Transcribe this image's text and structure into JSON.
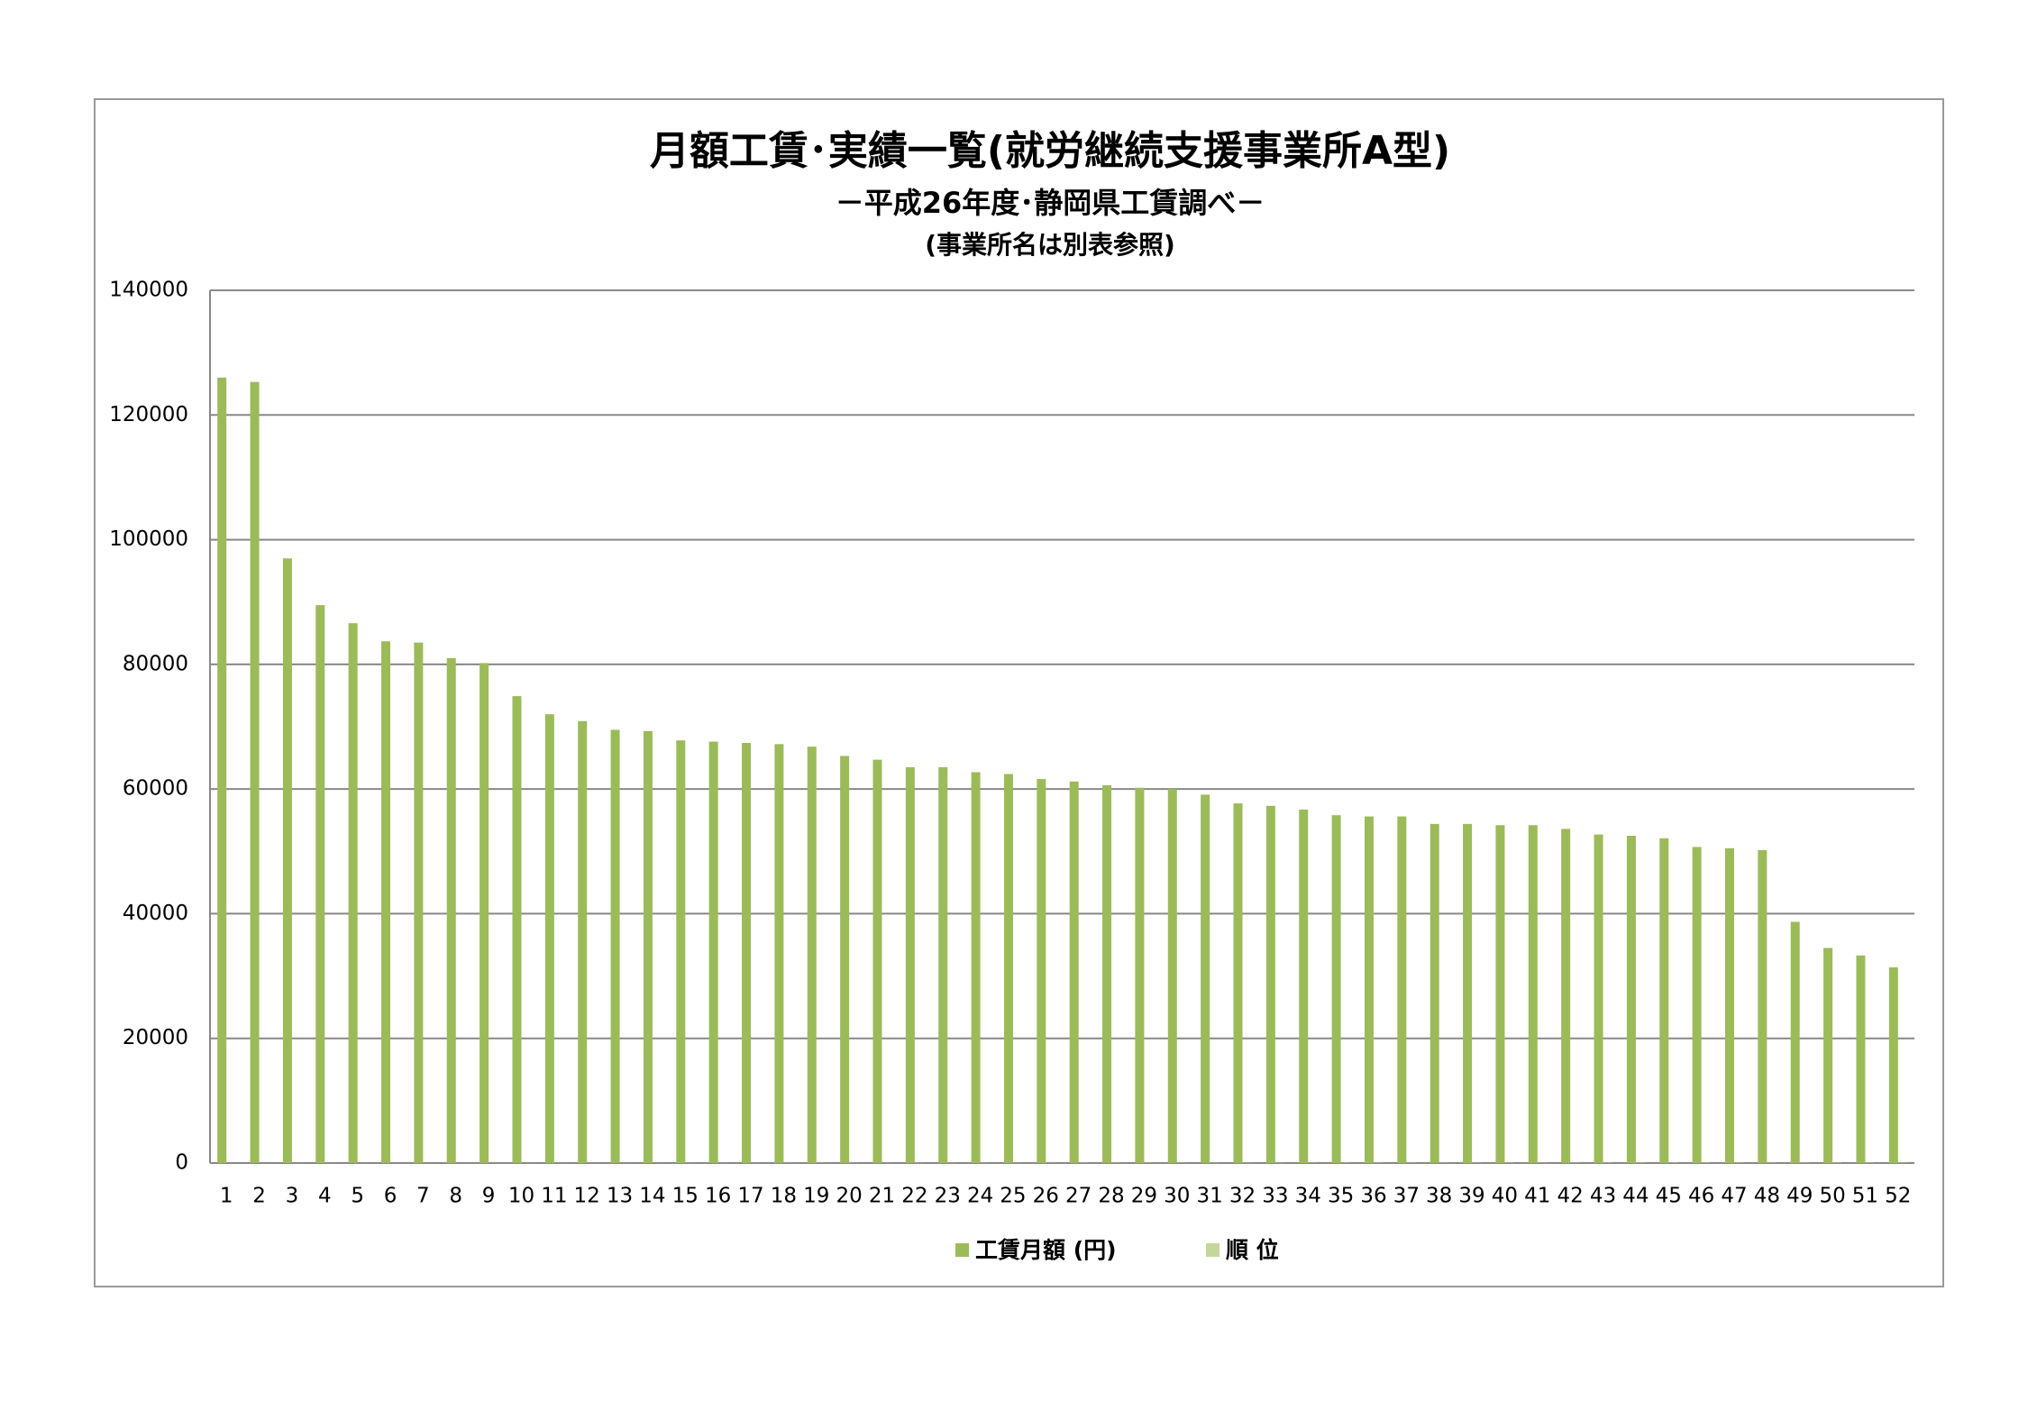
{
  "chart_data": {
    "type": "bar",
    "title": "月額工賃･実績一覧(就労継続支援事業所A型)",
    "subtitle": "－平成26年度･静岡県工賃調べ－",
    "subtitle2": "(事業所名は別表参照)",
    "categories": [
      "1",
      "2",
      "3",
      "4",
      "5",
      "6",
      "7",
      "8",
      "9",
      "10",
      "11",
      "12",
      "13",
      "14",
      "15",
      "16",
      "17",
      "18",
      "19",
      "20",
      "21",
      "22",
      "23",
      "24",
      "25",
      "26",
      "27",
      "28",
      "29",
      "30",
      "31",
      "32",
      "33",
      "34",
      "35",
      "36",
      "37",
      "38",
      "39",
      "40",
      "41",
      "42",
      "43",
      "44",
      "45",
      "46",
      "47",
      "48",
      "49",
      "50",
      "51",
      "52"
    ],
    "series": [
      {
        "name": "工賃月額 (円)",
        "color": "#9bbb59",
        "values": [
          126000,
          125300,
          97000,
          89500,
          86600,
          83700,
          83500,
          81000,
          80200,
          74900,
          72000,
          70900,
          69500,
          69300,
          67800,
          67600,
          67400,
          67200,
          66800,
          65300,
          64700,
          63500,
          63500,
          62700,
          62400,
          61600,
          61200,
          60600,
          60200,
          60000,
          59100,
          57700,
          57300,
          56700,
          55800,
          55600,
          55600,
          54400,
          54400,
          54200,
          54200,
          53600,
          52700,
          52500,
          52100,
          50700,
          50500,
          50200,
          38700,
          34500,
          33300,
          31400
        ]
      },
      {
        "name": "順 位",
        "color": "#c4d79b",
        "values": [
          1,
          2,
          3,
          4,
          5,
          6,
          7,
          8,
          9,
          10,
          11,
          12,
          13,
          14,
          15,
          16,
          17,
          18,
          19,
          20,
          21,
          22,
          23,
          24,
          25,
          26,
          27,
          28,
          29,
          30,
          31,
          32,
          33,
          34,
          35,
          36,
          37,
          38,
          39,
          40,
          41,
          42,
          43,
          44,
          45,
          46,
          47,
          48,
          49,
          50,
          51,
          52
        ]
      }
    ],
    "ylim": [
      0,
      140000
    ],
    "yticks": [
      0,
      20000,
      40000,
      60000,
      80000,
      100000,
      120000,
      140000
    ],
    "grid": true,
    "legend": "bottom"
  }
}
